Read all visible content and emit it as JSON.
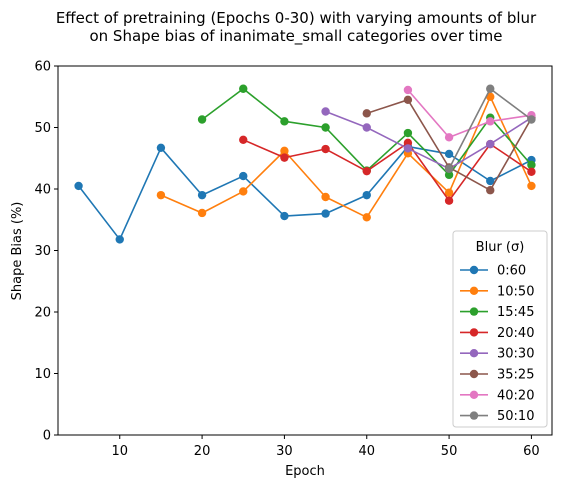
{
  "chart_data": {
    "type": "line",
    "title_line1": "Effect of pretraining (Epochs 0-30) with varying amounts of blur",
    "title_line2": "on Shape bias of inanimate_small categories over time",
    "xlabel": "Epoch",
    "ylabel": "Shape Bias (%)",
    "xlim": [
      2.5,
      62.5
    ],
    "ylim": [
      0,
      60
    ],
    "xticks": [
      10,
      20,
      30,
      40,
      50,
      60
    ],
    "yticks": [
      0,
      10,
      20,
      30,
      40,
      50,
      60
    ],
    "grid": false,
    "legend": {
      "title": "Blur (σ)",
      "placement": "lower right"
    },
    "series": [
      {
        "name": "0:60",
        "color": "#1f77b4",
        "x": [
          5,
          10,
          15,
          20,
          25,
          30,
          35,
          40,
          45,
          50,
          55,
          60
        ],
        "y": [
          40.5,
          31.8,
          46.7,
          39.0,
          42.1,
          35.6,
          36.0,
          39.0,
          46.9,
          45.7,
          41.3,
          44.7
        ]
      },
      {
        "name": "10:50",
        "color": "#ff7f0e",
        "x": [
          15,
          20,
          25,
          30,
          35,
          40,
          45,
          50,
          55,
          60
        ],
        "y": [
          39.0,
          36.1,
          39.6,
          46.2,
          38.7,
          35.4,
          45.8,
          39.4,
          55.0,
          40.5
        ]
      },
      {
        "name": "15:45",
        "color": "#2ca02c",
        "x": [
          20,
          25,
          30,
          35,
          40,
          45,
          50,
          55,
          60
        ],
        "y": [
          51.3,
          56.3,
          51.0,
          50.0,
          43.0,
          49.1,
          42.3,
          51.6,
          43.9
        ]
      },
      {
        "name": "20:40",
        "color": "#d62728",
        "x": [
          25,
          30,
          35,
          40,
          45,
          50,
          55,
          60
        ],
        "y": [
          48.0,
          45.1,
          46.5,
          42.9,
          47.5,
          38.1,
          47.3,
          42.8
        ]
      },
      {
        "name": "30:30",
        "color": "#9467bd",
        "x": [
          35,
          40,
          45,
          50,
          55,
          60
        ],
        "y": [
          52.6,
          50.0,
          46.6,
          43.3,
          47.3,
          51.6
        ]
      },
      {
        "name": "35:25",
        "color": "#8c564b",
        "x": [
          40,
          45,
          50,
          55,
          60
        ],
        "y": [
          52.3,
          54.5,
          43.5,
          39.8,
          51.5
        ]
      },
      {
        "name": "40:20",
        "color": "#e377c2",
        "x": [
          45,
          50,
          55,
          60
        ],
        "y": [
          56.1,
          48.4,
          51.0,
          52.0
        ]
      },
      {
        "name": "50:10",
        "color": "#7f7f7f",
        "x": [
          50,
          55,
          60
        ],
        "y": [
          43.3,
          56.3,
          51.3
        ]
      }
    ]
  }
}
